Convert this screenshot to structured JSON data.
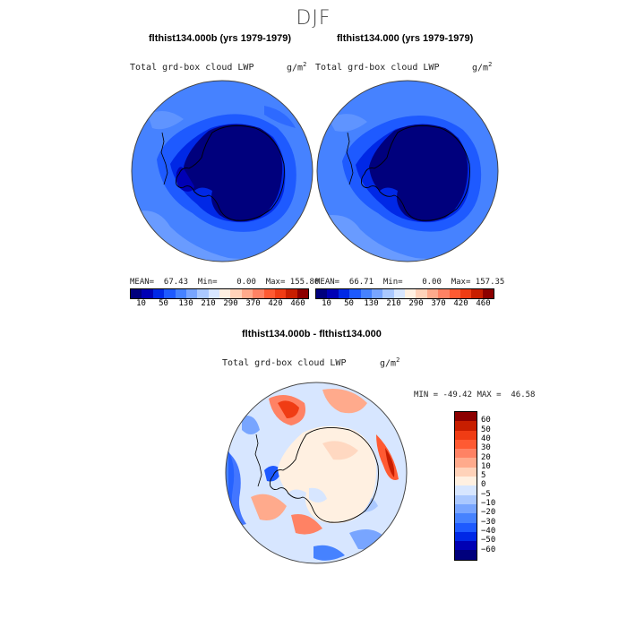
{
  "season": "DJF",
  "top_left": {
    "title": "flthist134.000b (yrs 1979-1979)",
    "variable": "Total grd-box cloud LWP",
    "unit_base": "g/m",
    "unit_exp": "2",
    "stats": "MEAN=  67.43  Min=    0.00  Max= 155.80"
  },
  "top_right": {
    "title": "flthist134.000 (yrs 1979-1979)",
    "variable": "Total grd-box cloud LWP",
    "unit_base": "g/m",
    "unit_exp": "2",
    "stats": "MEAN=  66.71  Min=    0.00  Max= 157.35"
  },
  "bottom": {
    "title": "flthist134.000b - flthist134.000",
    "variable": "Total grd-box cloud LWP",
    "unit_base": "g/m",
    "unit_exp": "2",
    "stats": "MIN = -49.42 MAX =  46.58"
  },
  "colorbar_top": {
    "colors": [
      "#00007d",
      "#0000b4",
      "#0028e6",
      "#1e5aff",
      "#4682ff",
      "#78a5ff",
      "#aac8ff",
      "#d7e6ff",
      "#fff0e1",
      "#ffd2b9",
      "#ffaa8c",
      "#ff8264",
      "#ff5a32",
      "#f03c14",
      "#c81e00",
      "#8c0000"
    ],
    "labels": [
      "10",
      "50",
      "130",
      "210",
      "290",
      "370",
      "420",
      "460"
    ]
  },
  "colorbar_diff": {
    "colors": [
      "#8c0000",
      "#c81e00",
      "#f03c14",
      "#ff5a32",
      "#ff8264",
      "#ffaa8c",
      "#ffd2b9",
      "#fff0e1",
      "#d7e6ff",
      "#aac8ff",
      "#78a5ff",
      "#4682ff",
      "#1e5aff",
      "#0028e6",
      "#0000b4",
      "#00007d"
    ],
    "labels": [
      "60",
      "50",
      "40",
      "30",
      "20",
      "10",
      "5",
      "0",
      "−5",
      "−10",
      "−20",
      "−30",
      "−40",
      "−50",
      "−60"
    ]
  }
}
